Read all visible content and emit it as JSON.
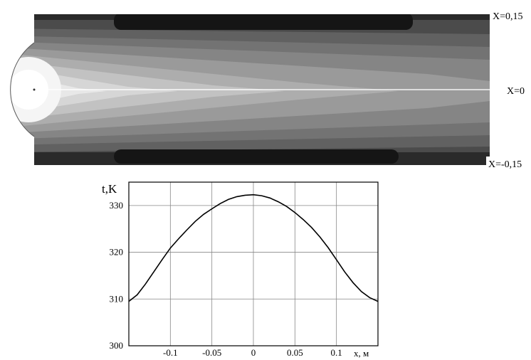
{
  "contour": {
    "section_labels": [
      "X=0,15",
      "X=0",
      "X=-0,15"
    ]
  },
  "chart_data": {
    "type": "line",
    "xlabel": "x, м",
    "ylabel": "t,K",
    "xlim": [
      -0.15,
      0.15
    ],
    "ylim": [
      300,
      335
    ],
    "x_ticks": [
      "-0.1",
      "-0.05",
      "0",
      "0.05",
      "0.1"
    ],
    "y_ticks": [
      "330",
      "320",
      "310",
      "300"
    ],
    "grid": true,
    "series": [
      {
        "x": [
          -0.15,
          -0.14,
          -0.13,
          -0.12,
          -0.11,
          -0.1,
          -0.09,
          -0.08,
          -0.07,
          -0.06,
          -0.05,
          -0.04,
          -0.03,
          -0.02,
          -0.01,
          0,
          0.01,
          0.02,
          0.03,
          0.04,
          0.05,
          0.06,
          0.07,
          0.08,
          0.09,
          0.1,
          0.11,
          0.12,
          0.13,
          0.14,
          0.15
        ],
        "y": [
          309.5,
          310.9,
          313.2,
          315.8,
          318.4,
          320.9,
          322.9,
          324.8,
          326.6,
          328.1,
          329.3,
          330.4,
          331.3,
          331.9,
          332.2,
          332.3,
          332.1,
          331.6,
          330.8,
          329.8,
          328.5,
          327.0,
          325.3,
          323.3,
          321.0,
          318.4,
          315.8,
          313.5,
          311.6,
          310.3,
          309.5
        ]
      }
    ]
  }
}
